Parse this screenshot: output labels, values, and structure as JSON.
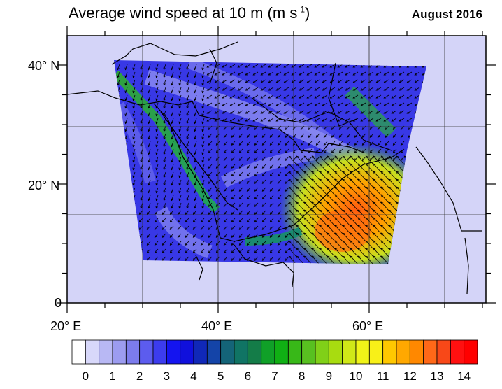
{
  "title": {
    "main": "Average wind speed at 10 m (m s",
    "sup": "-1",
    "close": ")"
  },
  "date": "August 2016",
  "axes": {
    "y_labels": [
      "40° N",
      "20° N",
      "0"
    ],
    "x_labels": [
      "20° E",
      "40° E",
      "60° E"
    ]
  },
  "colorbar": {
    "labels": [
      "0",
      "1",
      "2",
      "3",
      "4",
      "5",
      "6",
      "7",
      "8",
      "9",
      "10",
      "11",
      "12",
      "13",
      "14"
    ],
    "colors": [
      "#ffffff",
      "#d8d8fa",
      "#b8b8f4",
      "#9c9cf0",
      "#7c7cec",
      "#5c5cee",
      "#3c3cee",
      "#1414f0",
      "#1010dc",
      "#1028b8",
      "#1444a8",
      "#146478",
      "#107464",
      "#147c48",
      "#10a028",
      "#10b014",
      "#38b818",
      "#58c020",
      "#80d018",
      "#a8dc10",
      "#d0e818",
      "#f0f418",
      "#f8f018",
      "#ffc800",
      "#ffa800",
      "#ff8800",
      "#ff6818",
      "#f84818",
      "#ff1010",
      "#ff0000"
    ],
    "units_range": [
      0,
      15
    ]
  },
  "colors": {
    "background": "#d4d4f8",
    "field": "#3838e6"
  }
}
